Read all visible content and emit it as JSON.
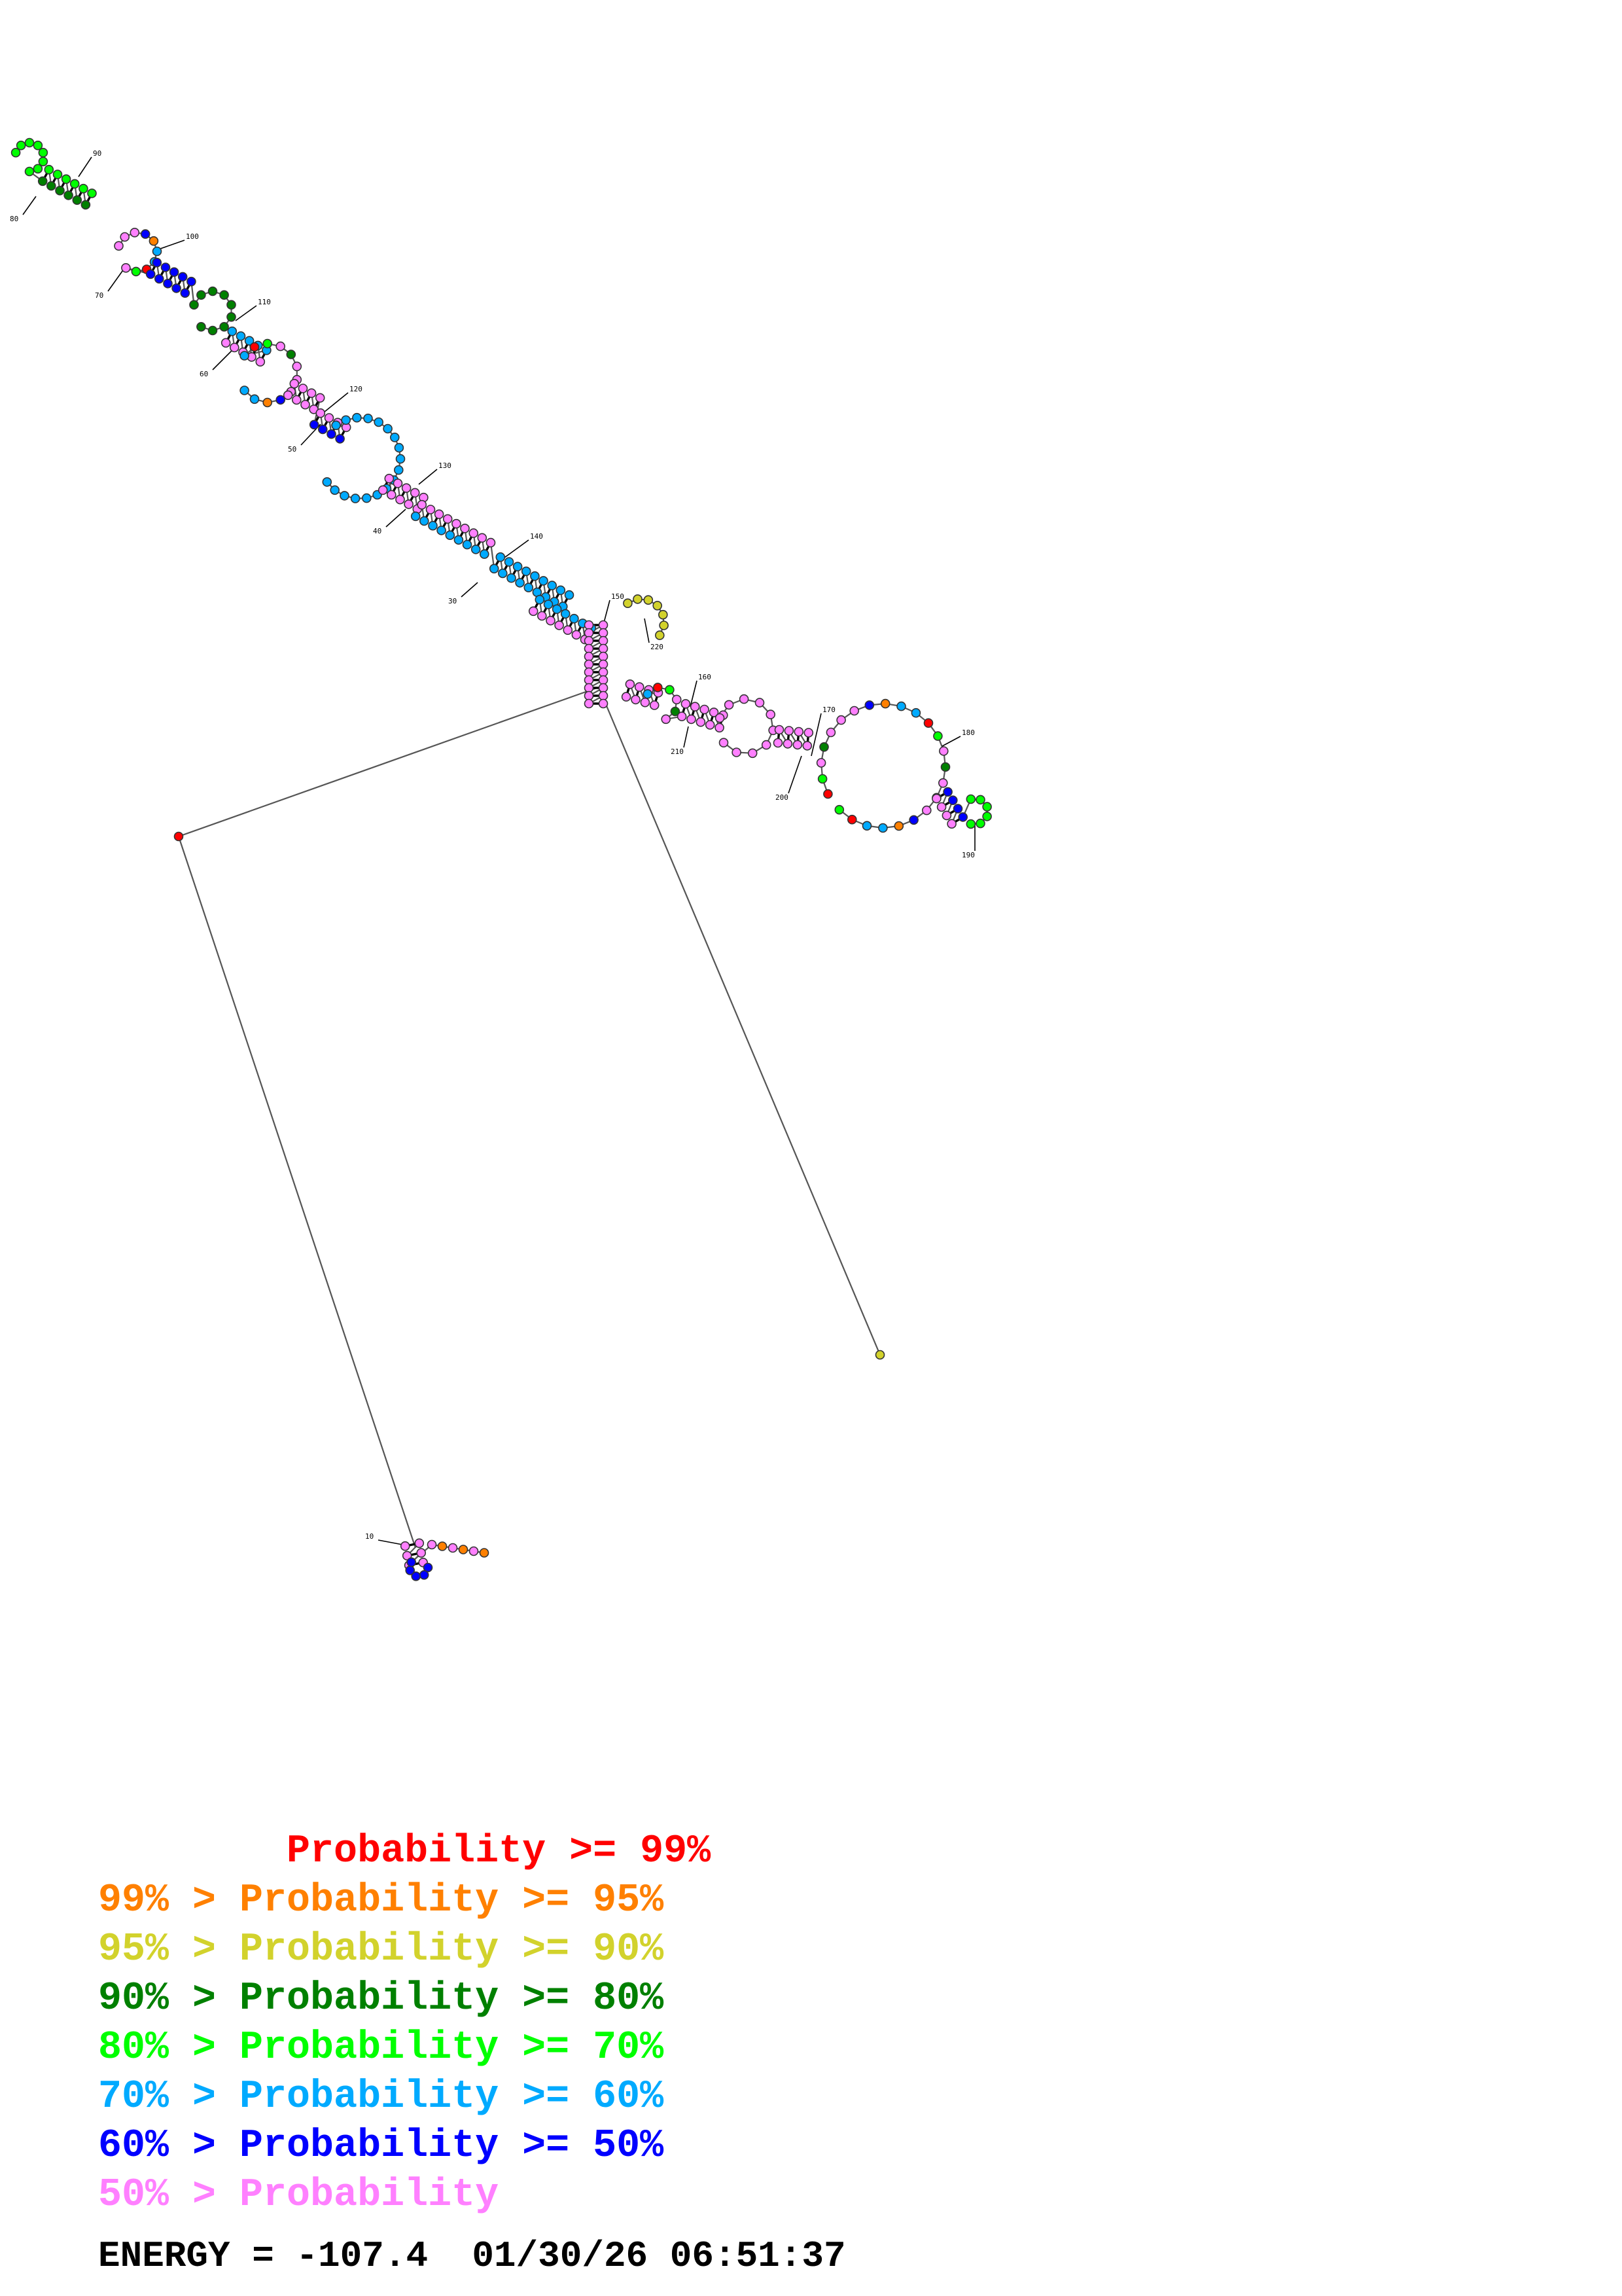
{
  "colors": {
    "p99": "#ff0000",
    "p95": "#ff8000",
    "p90": "#d2d22c",
    "p80": "#008000",
    "p70": "#00ff00",
    "p60": "#00aaff",
    "p50": "#0000ff",
    "plow": "#ff80ff"
  },
  "legend": [
    {
      "text": "        Probability >= 99%",
      "color": "#ff0000"
    },
    {
      "text": "99% > Probability >= 95%",
      "color": "#ff8000"
    },
    {
      "text": "95% > Probability >= 90%",
      "color": "#d2d22c"
    },
    {
      "text": "90% > Probability >= 80%",
      "color": "#008000"
    },
    {
      "text": "80% > Probability >= 70%",
      "color": "#00ff00"
    },
    {
      "text": "70% > Probability >= 60%",
      "color": "#00aaff"
    },
    {
      "text": "60% > Probability >= 50%",
      "color": "#0000ff"
    },
    {
      "text": "50% > Probability",
      "color": "#ff80ff"
    }
  ],
  "footer": {
    "energy_label": "ENERGY = -107.4",
    "timestamp": "01/30/26 06:51:37"
  },
  "index_labels": [
    "10",
    "30",
    "40",
    "50",
    "60",
    "70",
    "80",
    "90",
    "100",
    "110",
    "120",
    "130",
    "140",
    "150",
    "160",
    "170",
    "180",
    "190",
    "200",
    "210",
    "220"
  ]
}
